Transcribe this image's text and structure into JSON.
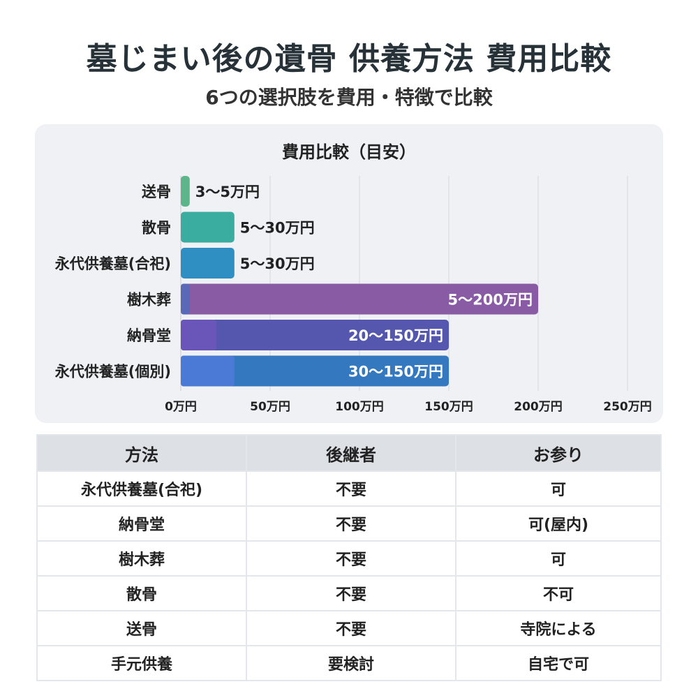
{
  "title": "墓じまい後の遺骨 供養方法 費用比較",
  "subtitle": "6つの選択肢を費用・特徴で比較",
  "chart_data": {
    "type": "bar",
    "orientation": "horizontal-range",
    "title": "費用比較（目安）",
    "categories": [
      "送骨",
      "散骨",
      "永代供養墓(合祀)",
      "樹木葬",
      "納骨堂",
      "永代供養墓(個別)"
    ],
    "min_values": [
      3,
      5,
      5,
      5,
      20,
      30
    ],
    "max_values": [
      5,
      30,
      30,
      200,
      150,
      150
    ],
    "labels": [
      "3〜5万円",
      "5〜30万円",
      "5〜30万円",
      "5〜200万円",
      "20〜150万円",
      "30〜150万円"
    ],
    "colors": [
      "#5db58a",
      "#3aaca0",
      "#2f8fc2",
      "#8a5ba5",
      "#5457ad",
      "#3479c0"
    ],
    "min_colors": [
      "#5db58a",
      "#3aaca0",
      "#2f8fc2",
      "#5a68b8",
      "#6a56b8",
      "#4a7ad6"
    ],
    "x_ticks": [
      0,
      50,
      100,
      150,
      200,
      250
    ],
    "x_tick_labels": [
      "0万円",
      "50万円",
      "100万円",
      "150万円",
      "200万円",
      "250万円"
    ],
    "xlim": [
      0,
      250
    ],
    "grid": true
  },
  "table": {
    "headers": [
      "方法",
      "後継者",
      "お参り"
    ],
    "rows": [
      [
        "永代供養墓(合祀)",
        "不要",
        "可"
      ],
      [
        "納骨堂",
        "不要",
        "可(屋内)"
      ],
      [
        "樹木葬",
        "不要",
        "可"
      ],
      [
        "散骨",
        "不要",
        "不可"
      ],
      [
        "送骨",
        "不要",
        "寺院による"
      ],
      [
        "手元供養",
        "要検討",
        "自宅で可"
      ]
    ]
  }
}
